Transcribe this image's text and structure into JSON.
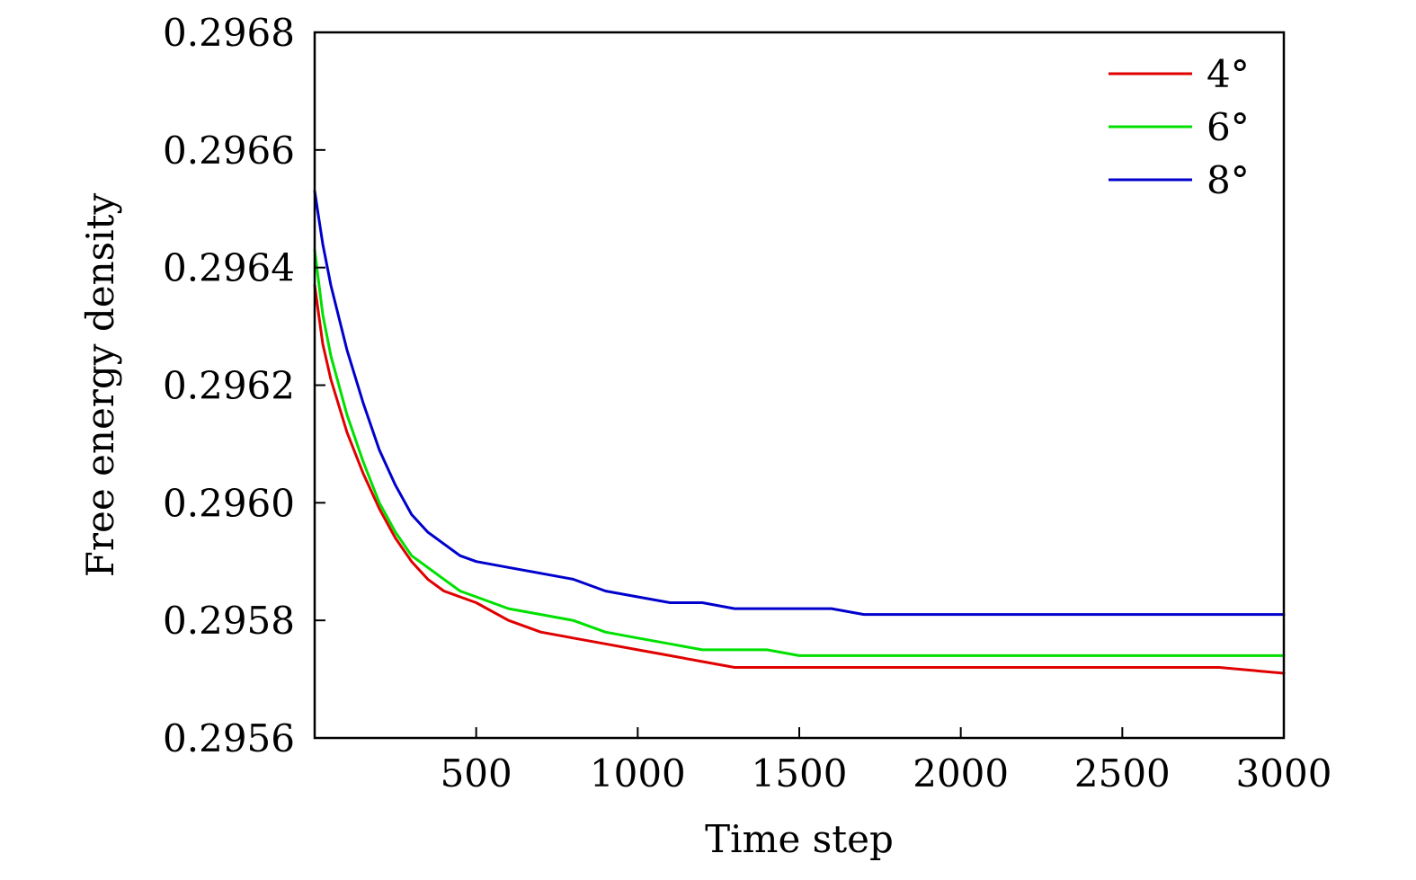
{
  "chart_data": {
    "type": "line",
    "xlabel": "Time step",
    "ylabel": "Free energy density",
    "xlim": [
      0,
      3000
    ],
    "ylim": [
      0.2956,
      0.2968
    ],
    "xticks": [
      500,
      1000,
      1500,
      2000,
      2500,
      3000
    ],
    "xtick_labels": [
      "500",
      "1000",
      "1500",
      "2000",
      "2500",
      "3000"
    ],
    "yticks": [
      0.2956,
      0.2958,
      0.296,
      0.2962,
      0.2964,
      0.2966,
      0.2968
    ],
    "ytick_labels": [
      "0.2956",
      "0.2958",
      "0.2960",
      "0.2962",
      "0.2964",
      "0.2966",
      "0.2968"
    ],
    "grid": false,
    "legend_position": "top-right",
    "x": [
      0,
      25,
      50,
      100,
      150,
      200,
      250,
      300,
      350,
      400,
      450,
      500,
      600,
      700,
      800,
      900,
      1000,
      1100,
      1200,
      1300,
      1400,
      1500,
      1600,
      1700,
      1800,
      2000,
      2200,
      2400,
      2600,
      2800,
      3000
    ],
    "series": [
      {
        "name": "4°",
        "color": "#e00000",
        "values": [
          0.29637,
          0.29627,
          0.29621,
          0.29612,
          0.29605,
          0.29599,
          0.29594,
          0.2959,
          0.29587,
          0.29585,
          0.29584,
          0.29583,
          0.2958,
          0.29578,
          0.29577,
          0.29576,
          0.29575,
          0.29574,
          0.29573,
          0.29572,
          0.29572,
          0.29572,
          0.29572,
          0.29572,
          0.29572,
          0.29572,
          0.29572,
          0.29572,
          0.29572,
          0.29572,
          0.29571
        ]
      },
      {
        "name": "6°",
        "color": "#00e000",
        "values": [
          0.29643,
          0.29632,
          0.29625,
          0.29615,
          0.29607,
          0.296,
          0.29595,
          0.29591,
          0.29589,
          0.29587,
          0.29585,
          0.29584,
          0.29582,
          0.29581,
          0.2958,
          0.29578,
          0.29577,
          0.29576,
          0.29575,
          0.29575,
          0.29575,
          0.29574,
          0.29574,
          0.29574,
          0.29574,
          0.29574,
          0.29574,
          0.29574,
          0.29574,
          0.29574,
          0.29574
        ]
      },
      {
        "name": "8°",
        "color": "#0000cc",
        "values": [
          0.29653,
          0.29644,
          0.29637,
          0.29626,
          0.29617,
          0.29609,
          0.29603,
          0.29598,
          0.29595,
          0.29593,
          0.29591,
          0.2959,
          0.29589,
          0.29588,
          0.29587,
          0.29585,
          0.29584,
          0.29583,
          0.29583,
          0.29582,
          0.29582,
          0.29582,
          0.29582,
          0.29581,
          0.29581,
          0.29581,
          0.29581,
          0.29581,
          0.29581,
          0.29581,
          0.29581
        ]
      }
    ]
  }
}
